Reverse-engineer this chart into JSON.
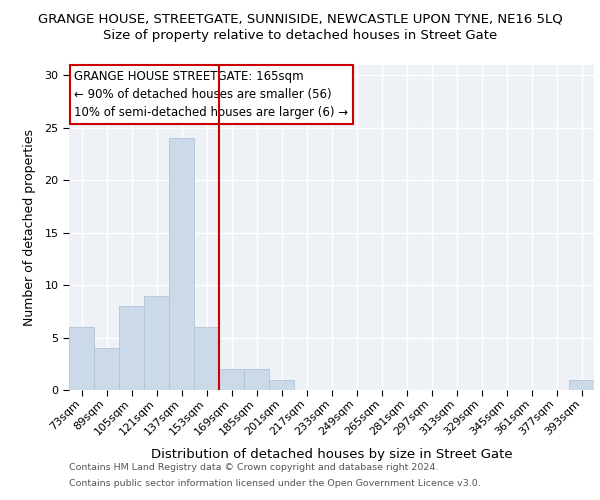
{
  "title": "GRANGE HOUSE, STREETGATE, SUNNISIDE, NEWCASTLE UPON TYNE, NE16 5LQ",
  "subtitle": "Size of property relative to detached houses in Street Gate",
  "xlabel": "Distribution of detached houses by size in Street Gate",
  "ylabel": "Number of detached properties",
  "categories": [
    "73sqm",
    "89sqm",
    "105sqm",
    "121sqm",
    "137sqm",
    "153sqm",
    "169sqm",
    "185sqm",
    "201sqm",
    "217sqm",
    "233sqm",
    "249sqm",
    "265sqm",
    "281sqm",
    "297sqm",
    "313sqm",
    "329sqm",
    "345sqm",
    "361sqm",
    "377sqm",
    "393sqm"
  ],
  "values": [
    6,
    4,
    8,
    9,
    24,
    6,
    2,
    2,
    1,
    0,
    0,
    0,
    0,
    0,
    0,
    0,
    0,
    0,
    0,
    0,
    1
  ],
  "bar_color": "#ccd9e8",
  "bar_edge_color": "#b0c4d8",
  "vline_x_index": 5.5,
  "vline_color": "#cc0000",
  "annotation_text": "GRANGE HOUSE STREETGATE: 165sqm\n← 90% of detached houses are smaller (56)\n10% of semi-detached houses are larger (6) →",
  "annotation_box_color": "#cc0000",
  "ylim": [
    0,
    31
  ],
  "yticks": [
    0,
    5,
    10,
    15,
    20,
    25,
    30
  ],
  "footer_line1": "Contains HM Land Registry data © Crown copyright and database right 2024.",
  "footer_line2": "Contains public sector information licensed under the Open Government Licence v3.0.",
  "background_color": "#eef2f7",
  "title_fontsize": 9.5,
  "subtitle_fontsize": 9.5,
  "tick_fontsize": 8,
  "ylabel_fontsize": 9,
  "xlabel_fontsize": 9.5
}
